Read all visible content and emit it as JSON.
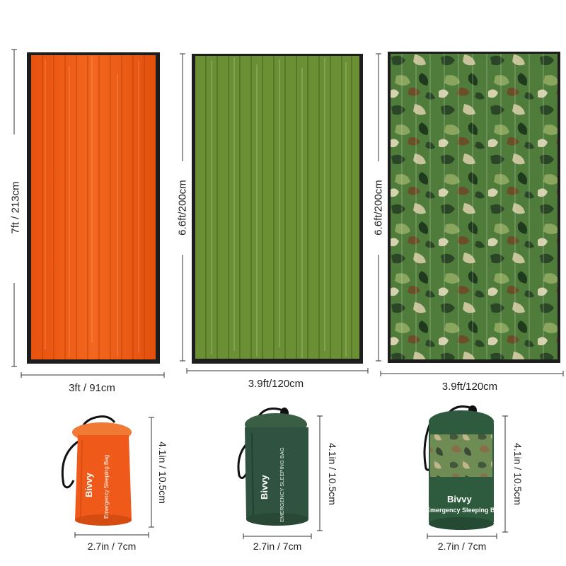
{
  "products": [
    {
      "id": "orange",
      "color_main": "#ef5a1a",
      "color_dark": "#c5420c",
      "unfolded": {
        "length_label": "7ft / 213cm",
        "width_label": "3ft / 91cm"
      },
      "pouch": {
        "brand": "Bivvy",
        "subtitle": "Emergency Sleeping Bag",
        "height_label": "4.1in / 10.5cm",
        "width_label": "2.7in / 7cm"
      }
    },
    {
      "id": "green",
      "color_main": "#6a8f32",
      "color_dark": "#4e6f22",
      "unfolded": {
        "length_label": "6.6ft/200cm",
        "width_label": "3.9ft/120cm"
      },
      "pouch": {
        "brand": "Bivvy",
        "subtitle": "EMERGENCY SLEEPING BAG",
        "height_label": "4.1in / 10.5cm",
        "width_label": "2.7in / 7cm"
      }
    },
    {
      "id": "camo",
      "color_main": "#4e7a3a",
      "color_dark": "#2a4a26",
      "unfolded": {
        "length_label": "6.6ft/200cm",
        "width_label": "3.9ft/120cm"
      },
      "pouch": {
        "brand": "Bivvy",
        "subtitle": "Emergency Sleeping Bag",
        "height_label": "4.1in / 10.5cm",
        "width_label": "2.7in / 7cm"
      }
    }
  ]
}
